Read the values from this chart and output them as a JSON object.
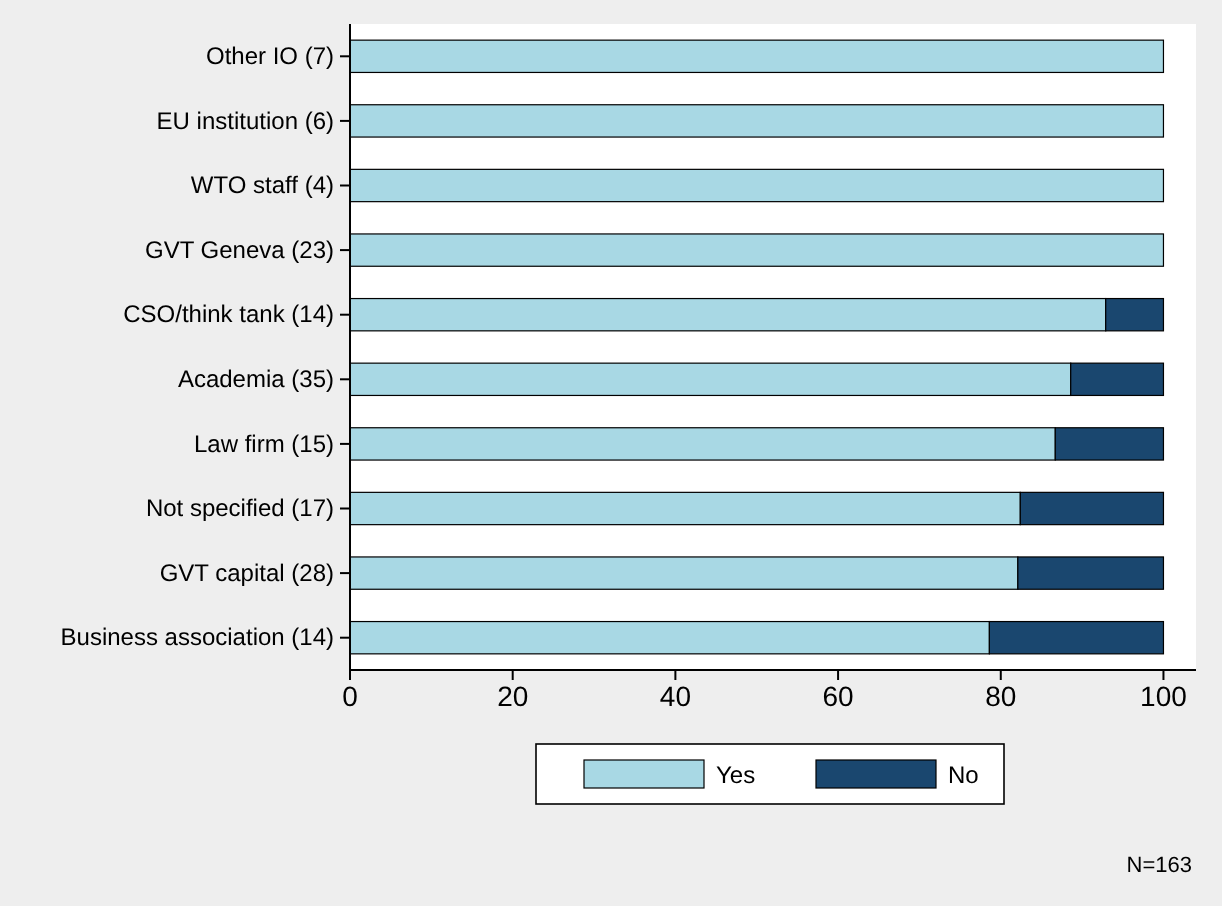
{
  "chart_data": {
    "type": "bar",
    "orientation": "horizontal",
    "stacked": true,
    "categories": [
      "Other IO (7)",
      "EU institution (6)",
      "WTO staff (4)",
      "GVT Geneva (23)",
      "CSO/think tank (14)",
      "Academia (35)",
      "Law firm (15)",
      "Not specified (17)",
      "GVT capital (28)",
      "Business  association (14)"
    ],
    "series": [
      {
        "name": "Yes",
        "color": "#a8d8e4",
        "values": [
          100,
          100,
          100,
          100,
          92.9,
          88.6,
          86.7,
          82.4,
          82.1,
          78.6
        ]
      },
      {
        "name": "No",
        "color": "#1a476f",
        "values": [
          0,
          0,
          0,
          0,
          7.1,
          11.4,
          13.3,
          17.6,
          17.9,
          21.4
        ]
      }
    ],
    "xlim": [
      0,
      104
    ],
    "xticks": [
      0,
      20,
      40,
      60,
      80,
      100
    ],
    "grid": false,
    "legend": "bottom",
    "annotations": [
      "N=163"
    ]
  }
}
